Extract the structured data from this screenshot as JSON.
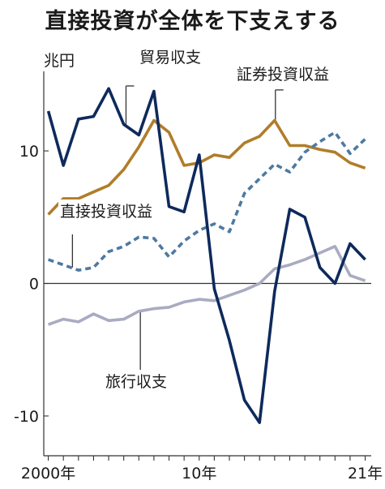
{
  "title": "直接投資が全体を下支えする",
  "unit": "兆円",
  "chart_data": {
    "type": "line",
    "title": "直接投資が全体を下支えする",
    "ylabel": "兆円",
    "xlabel": "",
    "ylim": [
      -13,
      16
    ],
    "xlim": [
      1999.7,
      2021.4
    ],
    "grid": false,
    "legend": "inline labels",
    "y_ticks": [
      {
        "value": 10,
        "label": "10"
      },
      {
        "value": 0,
        "label": "0"
      },
      {
        "value": -10,
        "label": "-10"
      }
    ],
    "x_ticks": [
      {
        "value": 2000,
        "label": "2000年"
      },
      {
        "value": 2010,
        "label": "10年"
      },
      {
        "value": 2021,
        "label": "21年"
      }
    ],
    "x": [
      2000,
      2001,
      2002,
      2003,
      2004,
      2005,
      2006,
      2007,
      2008,
      2009,
      2010,
      2011,
      2012,
      2013,
      2014,
      2015,
      2016,
      2017,
      2018,
      2019,
      2020,
      2021
    ],
    "series": [
      {
        "name": "貿易収支",
        "color": "#0e2a5c",
        "style": "solid",
        "values": [
          13.0,
          8.9,
          12.4,
          12.6,
          14.7,
          12.0,
          11.2,
          14.5,
          5.8,
          5.4,
          9.7,
          -0.4,
          -4.3,
          -8.8,
          -10.5,
          -0.6,
          5.6,
          5.0,
          1.2,
          0.0,
          3.0,
          1.8
        ]
      },
      {
        "name": "証券投資収益",
        "color": "#b07d2a",
        "style": "solid",
        "values": [
          5.2,
          6.4,
          6.4,
          6.9,
          7.4,
          8.6,
          10.3,
          12.3,
          11.4,
          8.9,
          9.1,
          9.7,
          9.5,
          10.6,
          11.1,
          12.3,
          10.4,
          10.4,
          10.1,
          9.9,
          9.1,
          8.7
        ]
      },
      {
        "name": "直接投資収益",
        "color": "#4e79a0",
        "style": "dashed",
        "values": [
          1.8,
          1.4,
          1.0,
          1.2,
          2.4,
          2.8,
          3.5,
          3.4,
          2.0,
          3.2,
          4.0,
          4.5,
          3.9,
          6.8,
          7.9,
          9.0,
          8.4,
          9.9,
          10.7,
          11.4,
          9.8,
          10.9
        ]
      },
      {
        "name": "旅行収支",
        "color": "#a9abc1",
        "style": "solid",
        "values": [
          -3.1,
          -2.7,
          -2.9,
          -2.3,
          -2.8,
          -2.7,
          -2.1,
          -1.9,
          -1.8,
          -1.4,
          -1.2,
          -1.3,
          -0.9,
          -0.5,
          0.0,
          1.1,
          1.4,
          1.8,
          2.3,
          2.8,
          0.6,
          0.2
        ]
      }
    ]
  }
}
